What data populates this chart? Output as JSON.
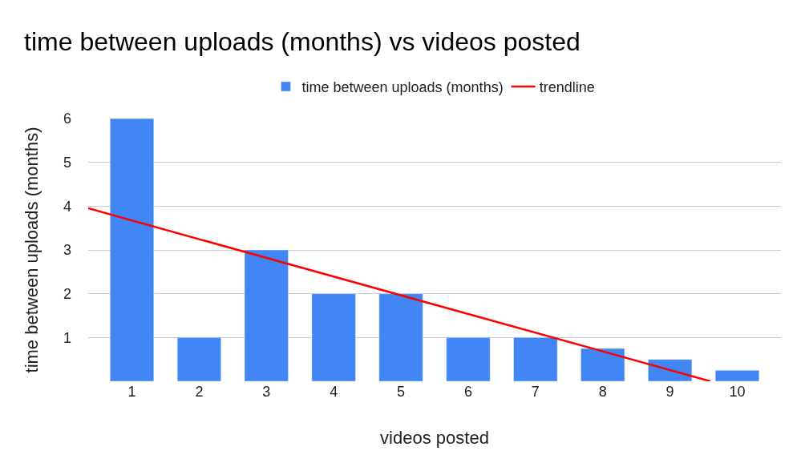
{
  "chart_data": {
    "type": "bar",
    "title": "time between uploads (months) vs videos posted",
    "xlabel": "videos posted",
    "ylabel": "time between uploads (months)",
    "x": [
      1,
      2,
      3,
      4,
      5,
      6,
      7,
      8,
      9,
      10
    ],
    "series": [
      {
        "name": "time between uploads (months)",
        "color": "#4285f4",
        "values": [
          6,
          1,
          3,
          2,
          2,
          1,
          1,
          0.75,
          0.5,
          0.25
        ]
      },
      {
        "name": "trendline",
        "type": "line",
        "color": "#ff0000",
        "x": [
          0.35,
          9.6
        ],
        "values": [
          3.95,
          0
        ]
      }
    ],
    "xlim": [
      0.35,
      10.65
    ],
    "xticks": [
      1,
      2,
      3,
      4,
      5,
      6,
      7,
      8,
      9,
      10
    ],
    "ylim": [
      0,
      6
    ],
    "yticks": [
      1,
      2,
      3,
      4,
      5,
      6
    ],
    "grid": "y",
    "legend": "top"
  }
}
